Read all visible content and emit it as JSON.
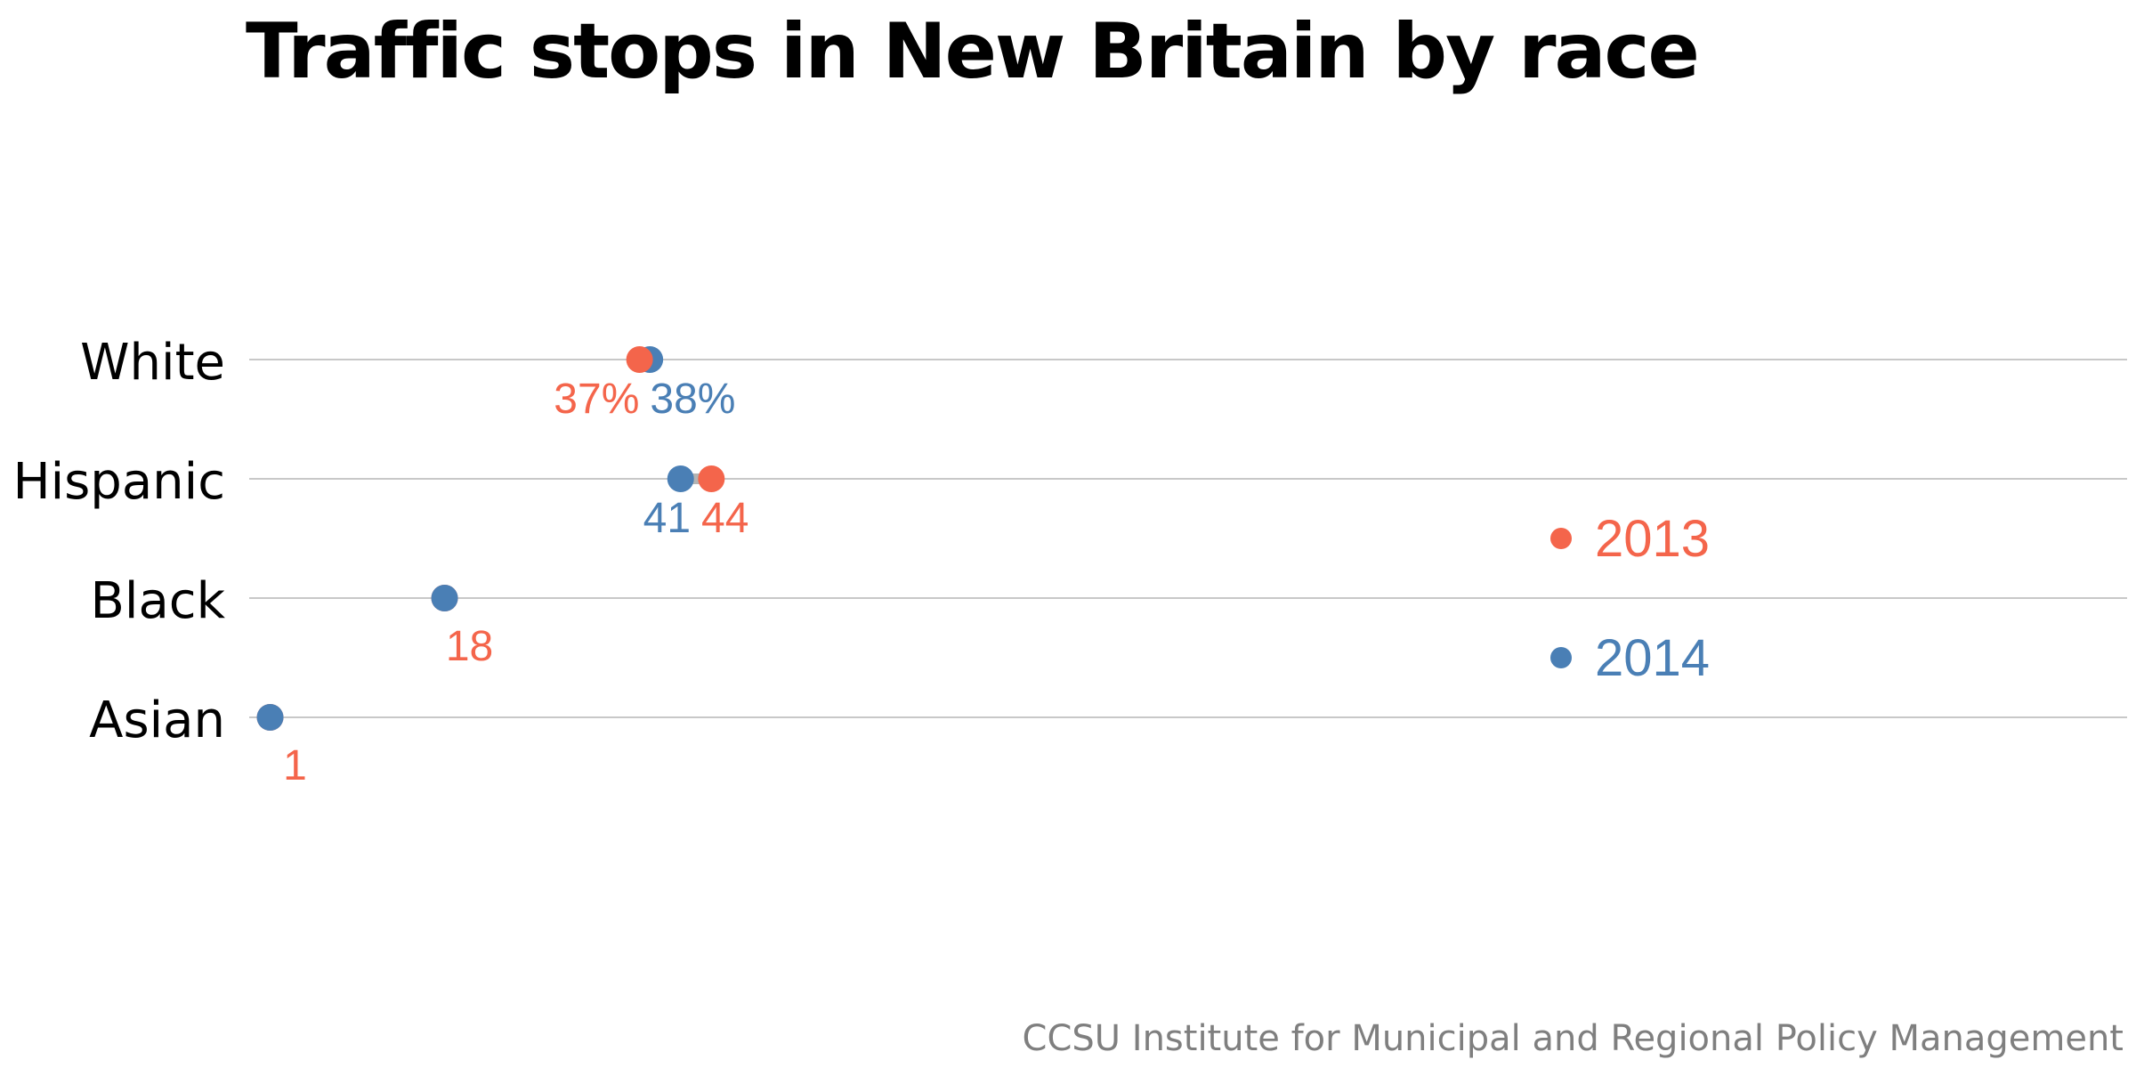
{
  "chart_data": {
    "type": "scatter",
    "title": "Traffic stops in New Britain by race",
    "xlabel": "",
    "ylabel": "",
    "categories": [
      "White",
      "Hispanic",
      "Black",
      "Asian"
    ],
    "xlim": [
      0,
      100
    ],
    "grid": "horizontal",
    "legend_position": "right",
    "series": [
      {
        "name": "2013",
        "color": "#f4654b",
        "values": [
          37,
          44,
          18,
          1
        ],
        "labels": [
          "37%",
          "44",
          "18",
          "1"
        ]
      },
      {
        "name": "2014",
        "color": "#4a7fb5",
        "values": [
          38,
          41,
          18,
          1
        ],
        "labels": [
          "38%",
          "41",
          "18",
          ""
        ]
      }
    ],
    "connector_color": "#b3b3b3",
    "gridline_color": "#c8c8c8"
  },
  "source": "CCSU Institute for Municipal and Regional Policy Management"
}
